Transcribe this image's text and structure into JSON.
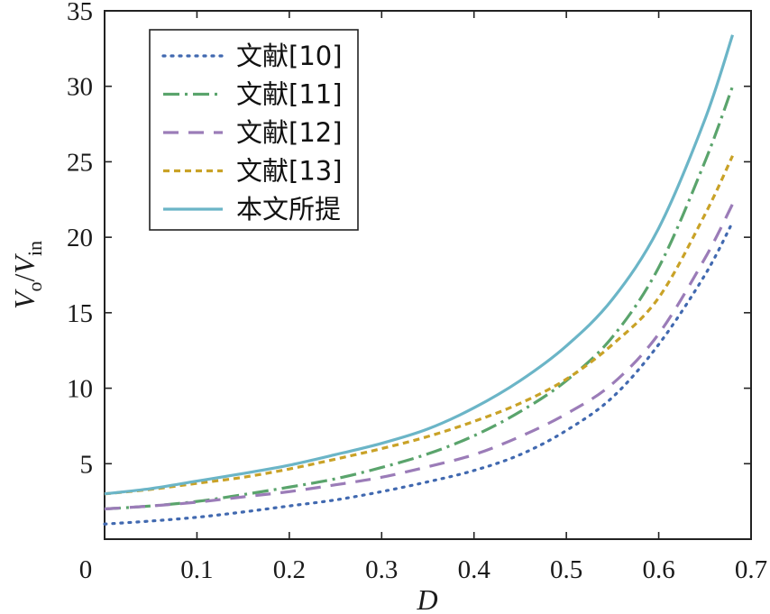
{
  "chart_data": {
    "type": "line",
    "xlabel": "D",
    "ylabel": {
      "main": "V",
      "sub_out": "o",
      "slash": "/",
      "main2": "V",
      "sub_in": "in"
    },
    "xlim": [
      0,
      0.7
    ],
    "ylim": [
      0,
      35
    ],
    "xticks": [
      {
        "value": 0,
        "label": "0"
      },
      {
        "value": 0.1,
        "label": "0.1"
      },
      {
        "value": 0.2,
        "label": "0.2"
      },
      {
        "value": 0.3,
        "label": "0.3"
      },
      {
        "value": 0.4,
        "label": "0.4"
      },
      {
        "value": 0.5,
        "label": "0.5"
      },
      {
        "value": 0.6,
        "label": "0.6"
      },
      {
        "value": 0.7,
        "label": "0.7"
      }
    ],
    "yticks": [
      {
        "value": 5,
        "label": "5"
      },
      {
        "value": 10,
        "label": "10"
      },
      {
        "value": 15,
        "label": "15"
      },
      {
        "value": 20,
        "label": "20"
      },
      {
        "value": 25,
        "label": "25"
      },
      {
        "value": 30,
        "label": "30"
      },
      {
        "value": 35,
        "label": "35"
      }
    ],
    "grid": false,
    "legend_position": "top-left",
    "series": [
      {
        "name": "文献[10]",
        "color": "#4169b0",
        "dash": "dotted",
        "x": [
          0,
          0.05,
          0.1,
          0.15,
          0.2,
          0.25,
          0.3,
          0.35,
          0.4,
          0.45,
          0.5,
          0.55,
          0.6,
          0.65,
          0.68
        ],
        "y": [
          1.0,
          1.2,
          1.45,
          1.8,
          2.2,
          2.6,
          3.15,
          3.8,
          4.55,
          5.6,
          7.2,
          9.4,
          12.9,
          17.5,
          21.0
        ]
      },
      {
        "name": "文献[11]",
        "color": "#5aa46c",
        "dash": "dashdot",
        "x": [
          0,
          0.05,
          0.1,
          0.15,
          0.2,
          0.25,
          0.3,
          0.35,
          0.4,
          0.45,
          0.5,
          0.55,
          0.6,
          0.65,
          0.68
        ],
        "y": [
          2.0,
          2.2,
          2.5,
          2.95,
          3.45,
          4.0,
          4.75,
          5.65,
          6.85,
          8.45,
          10.5,
          13.4,
          18.0,
          25.0,
          30.0
        ]
      },
      {
        "name": "文献[12]",
        "color": "#9b7cb8",
        "dash": "longdash",
        "x": [
          0,
          0.05,
          0.1,
          0.15,
          0.2,
          0.25,
          0.3,
          0.35,
          0.4,
          0.45,
          0.5,
          0.55,
          0.6,
          0.65,
          0.68
        ],
        "y": [
          2.0,
          2.2,
          2.45,
          2.8,
          3.15,
          3.6,
          4.1,
          4.8,
          5.6,
          6.8,
          8.3,
          10.3,
          13.6,
          18.6,
          22.2
        ]
      },
      {
        "name": "文献[13]",
        "color": "#c9a227",
        "dash": "shortdash",
        "x": [
          0,
          0.05,
          0.1,
          0.15,
          0.2,
          0.25,
          0.3,
          0.35,
          0.4,
          0.45,
          0.5,
          0.55,
          0.6,
          0.65,
          0.68
        ],
        "y": [
          3.0,
          3.3,
          3.7,
          4.1,
          4.65,
          5.3,
          6.0,
          6.8,
          7.8,
          9.0,
          10.6,
          12.9,
          16.0,
          21.5,
          25.4
        ]
      },
      {
        "name": "本文所提",
        "color": "#6bb5c7",
        "dash": "solid",
        "x": [
          0,
          0.05,
          0.1,
          0.15,
          0.2,
          0.25,
          0.3,
          0.35,
          0.4,
          0.45,
          0.5,
          0.55,
          0.6,
          0.65,
          0.68
        ],
        "y": [
          3.0,
          3.35,
          3.85,
          4.35,
          4.9,
          5.6,
          6.35,
          7.3,
          8.7,
          10.5,
          12.8,
          15.9,
          20.6,
          27.8,
          33.4
        ]
      }
    ]
  }
}
